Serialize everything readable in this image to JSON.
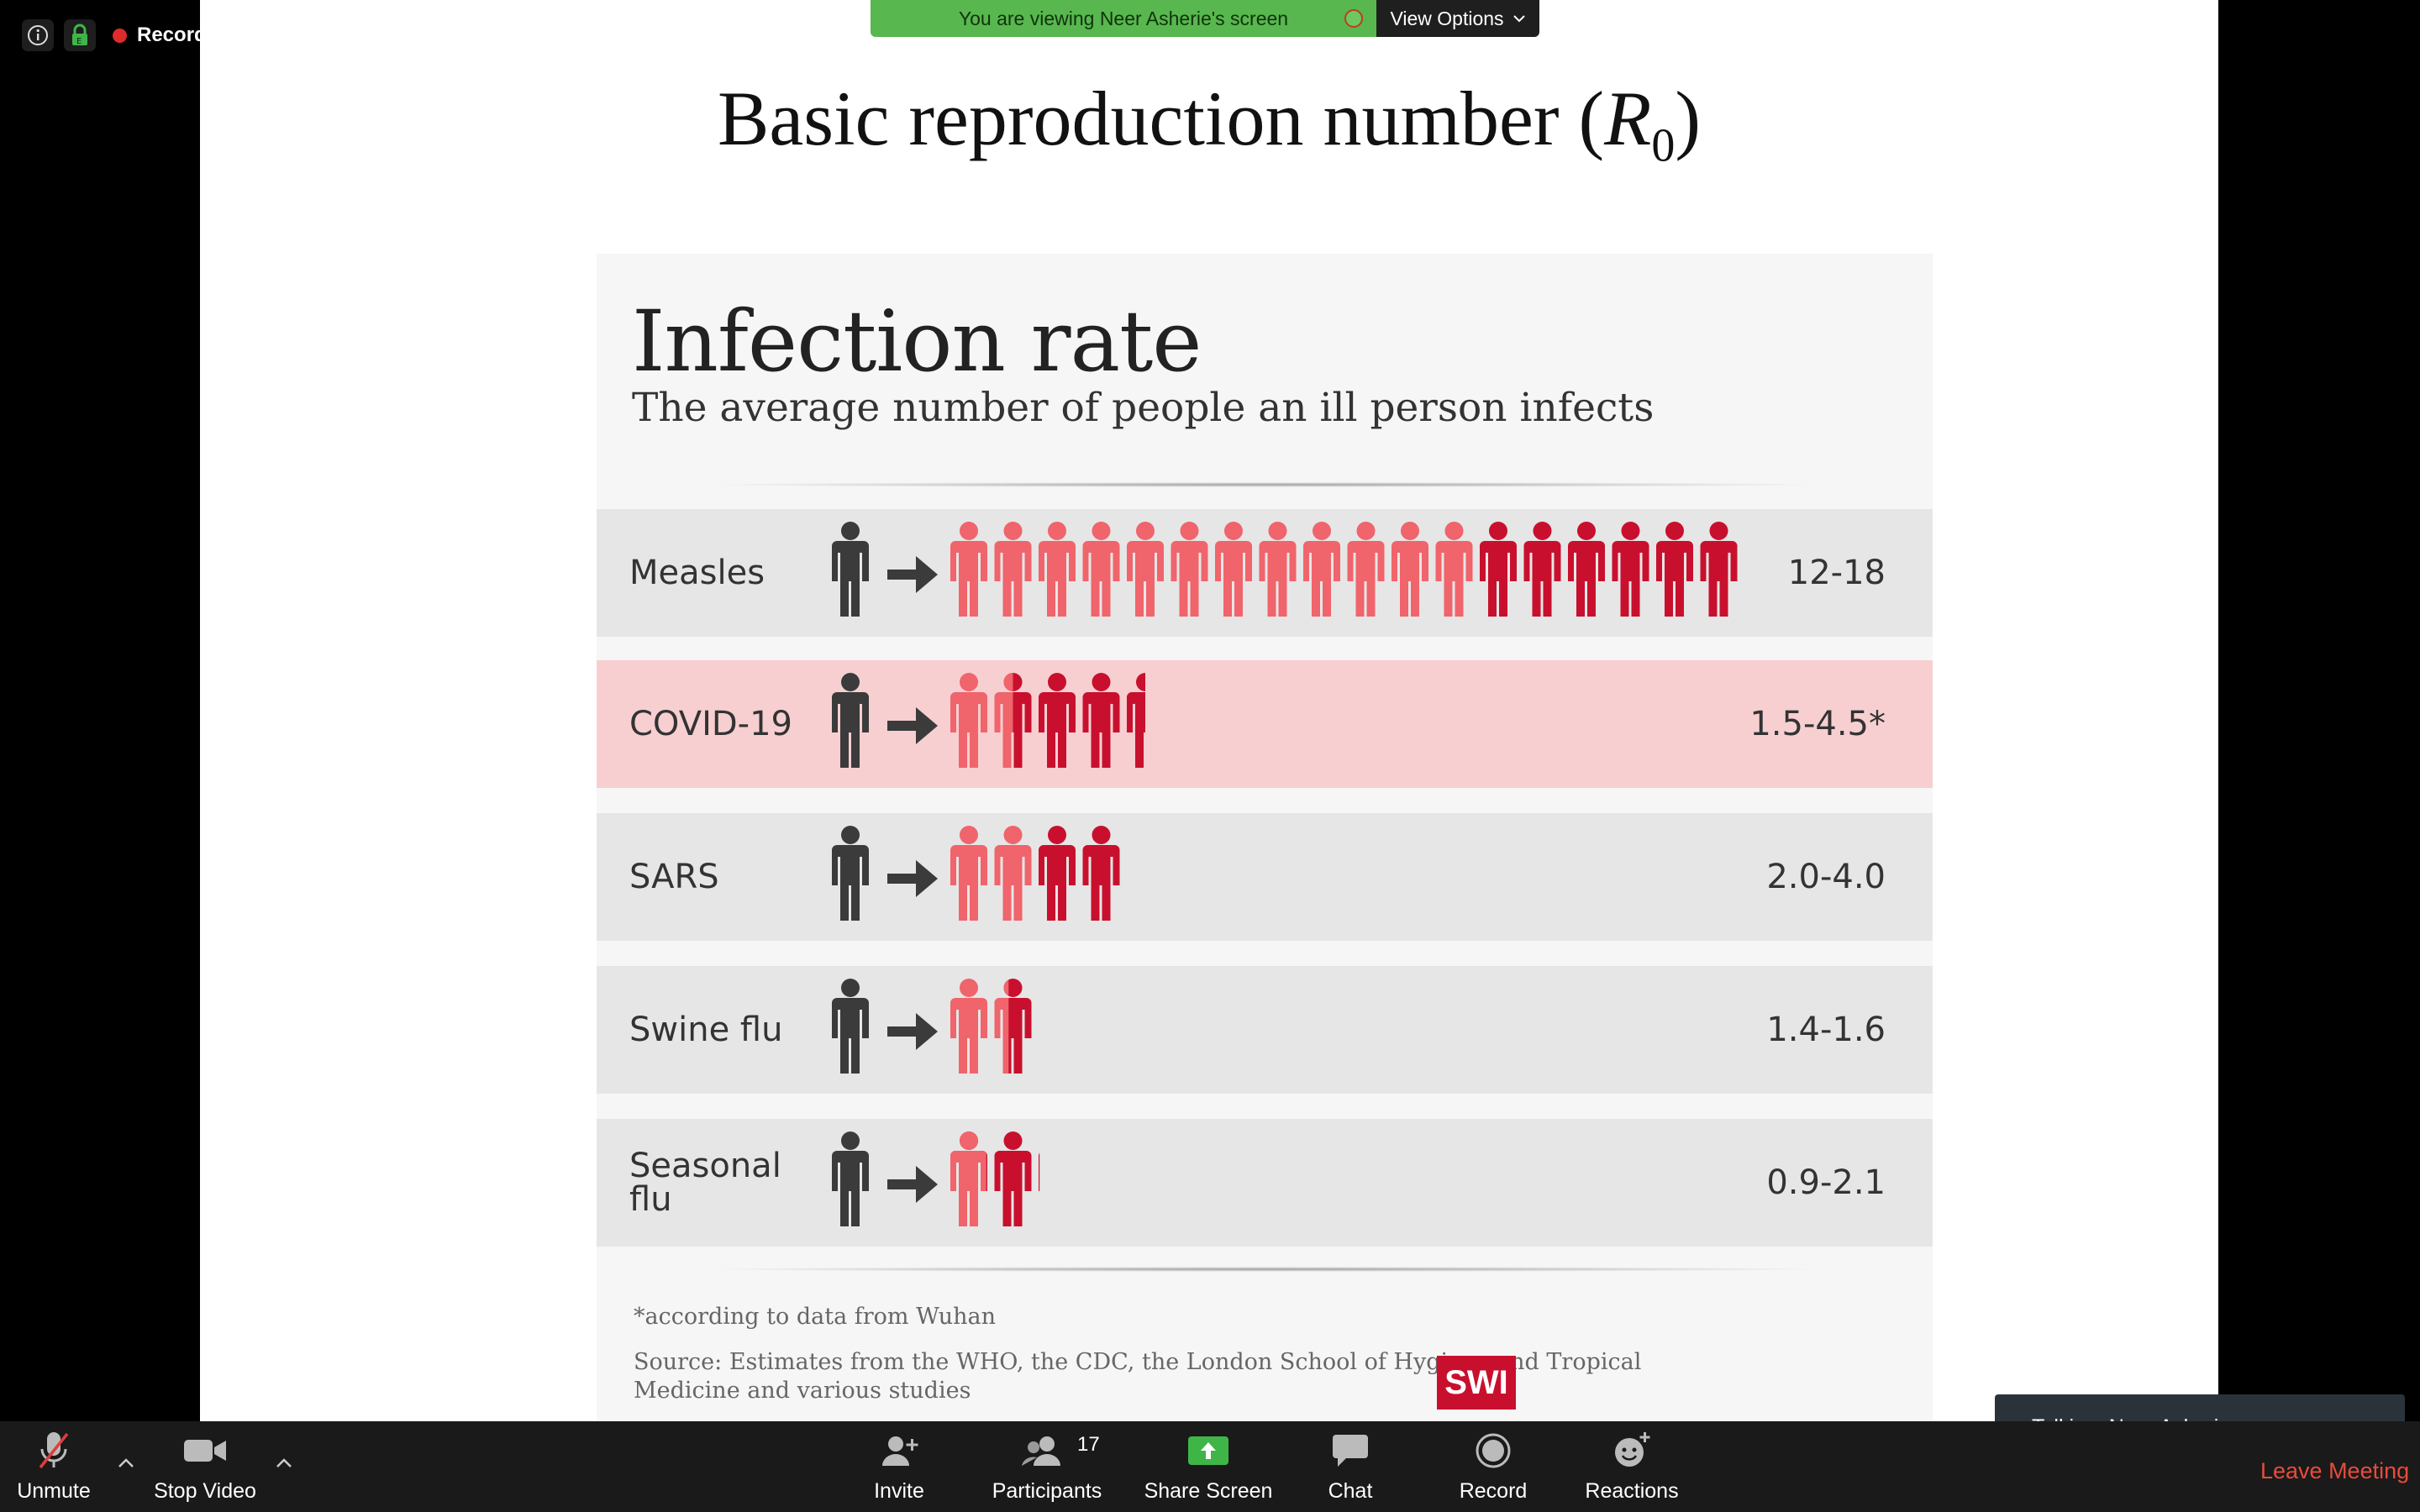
{
  "recording": {
    "label": "Recording"
  },
  "banner": {
    "viewing": "You are viewing Neer Asherie's screen",
    "view_options": "View Options"
  },
  "slide": {
    "title_prefix": "Basic reproduction number (",
    "title_symbol": "R",
    "title_subscript": "0",
    "title_suffix": ")"
  },
  "infographic": {
    "title": "Infection rate",
    "subtitle": "The average number of people an ill person infects",
    "rows": [
      {
        "label": "Measles",
        "value": "12-18",
        "low": 12,
        "high": 18,
        "highlight": false
      },
      {
        "label": "COVID-19",
        "value": "1.5-4.5*",
        "low": 1.5,
        "high": 4.5,
        "highlight": true
      },
      {
        "label": "SARS",
        "value": "2.0-4.0",
        "low": 2.0,
        "high": 4.0,
        "highlight": false
      },
      {
        "label": "Swine flu",
        "value": "1.4-1.6",
        "low": 1.4,
        "high": 1.6,
        "highlight": false
      },
      {
        "label": "Seasonal flu",
        "value": "0.9-2.1",
        "low": 0.9,
        "high": 2.1,
        "highlight": false
      }
    ],
    "footnote": "*according to data from Wuhan",
    "source_line1": "Source: Estimates from the WHO, the CDC, the London School of Hygiene and Tropical",
    "source_line2": "Medicine and various studies",
    "logo": "SWI",
    "colors": {
      "source_person": "#3b3b3b",
      "low_person": "#f0646c",
      "high_person": "#c8102e"
    }
  },
  "toolbar": {
    "unmute": "Unmute",
    "stop_video": "Stop Video",
    "invite": "Invite",
    "participants": "Participants",
    "participants_count": "17",
    "share_screen": "Share Screen",
    "chat": "Chat",
    "record": "Record",
    "reactions": "Reactions",
    "leave": "Leave Meeting"
  },
  "talking": {
    "text": "Talking: Neer Asherie"
  }
}
